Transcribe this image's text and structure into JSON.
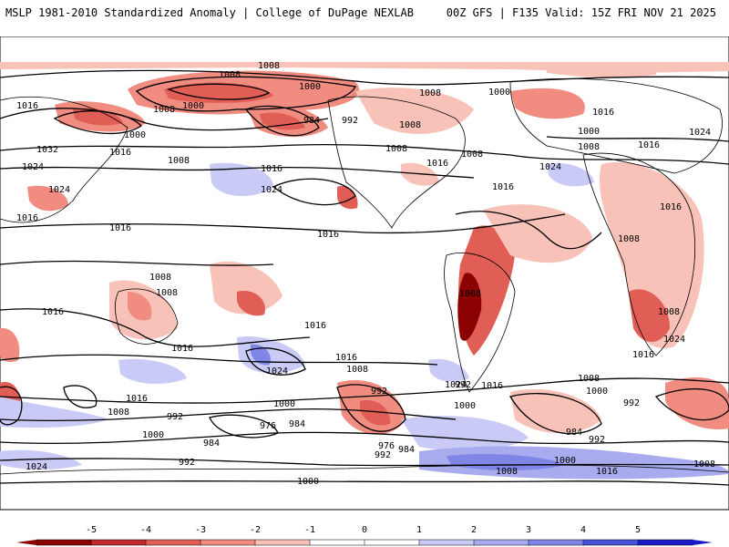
{
  "header": {
    "left": "MSLP 1981-2010 Standardized Anomaly | College of DuPage NEXLAB",
    "right": "00Z GFS | F135 Valid: 15Z FRI NOV 21 2025"
  },
  "isobar_labels": [
    "1008",
    "1000",
    "1008",
    "1000",
    "1008",
    "1016",
    "1032",
    "1024",
    "1016",
    "1008",
    "1024",
    "1016",
    "1024",
    "1016",
    "1000",
    "984",
    "992",
    "1008",
    "1016",
    "1016",
    "1008",
    "1000",
    "1016",
    "1008",
    "1024",
    "1000",
    "1016",
    "1024",
    "1008",
    "1016",
    "1016",
    "1016",
    "1008",
    "1008",
    "1016",
    "1024",
    "1008",
    "1016",
    "1016",
    "1000",
    "992",
    "1016",
    "1008",
    "992",
    "976",
    "984",
    "984",
    "992",
    "1000",
    "1000",
    "992",
    "1024",
    "1016",
    "1008",
    "992",
    "976",
    "984",
    "992",
    "1016",
    "1008",
    "1000",
    "1008",
    "1000",
    "984",
    "992",
    "1024",
    "1008",
    "1016",
    "1000",
    "1016",
    "1008",
    "1024",
    "1008",
    "1008"
  ],
  "colorbar": {
    "ticks": [
      "-5",
      "-4",
      "-3",
      "-2",
      "-1",
      "0",
      "1",
      "2",
      "3",
      "4",
      "5"
    ],
    "colors": [
      "#8b0000",
      "#c0292b",
      "#e05e55",
      "#f08c80",
      "#f9c2b8",
      "#ffffff",
      "#ffffff",
      "#c9cbf6",
      "#a8acef",
      "#7f86e6",
      "#4950d9",
      "#1a1ac8"
    ]
  }
}
